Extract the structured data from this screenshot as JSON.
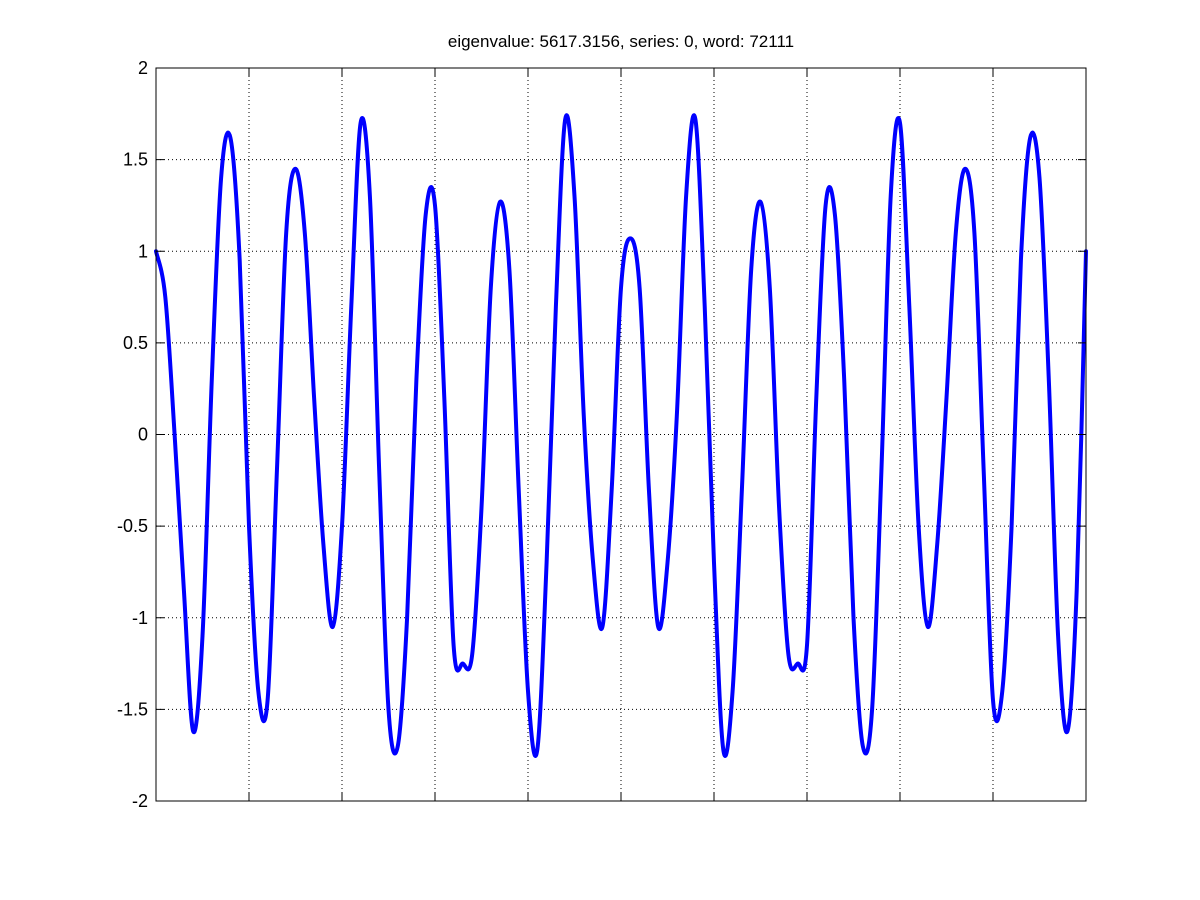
{
  "chart_data": {
    "type": "line",
    "title": "eigenvalue: 5617.3156, series: 0, word: 72111",
    "xlabel": "",
    "ylabel": "",
    "ylim": [
      -2,
      2
    ],
    "xlim": [
      0,
      1
    ],
    "y_ticks": [
      2,
      1.5,
      1,
      0.5,
      0,
      -0.5,
      -1,
      -1.5,
      -2
    ],
    "y_tick_labels": [
      "2",
      "1.5",
      "1",
      "0.5",
      "0",
      "-0.5",
      "-1",
      "-1.5",
      "-2"
    ],
    "x_ticks": [
      0,
      0.1,
      0.2,
      0.3,
      0.4,
      0.5,
      0.6,
      0.7,
      0.8,
      0.9,
      1
    ],
    "x_tick_labels_visible": false,
    "grid": true,
    "grid_style": "dotted",
    "line_color": "#0000ff",
    "series": [
      {
        "x": [
          0,
          0.01,
          0.02,
          0.03,
          0.04,
          0.05,
          0.06,
          0.07,
          0.08,
          0.09,
          0.1,
          0.11,
          0.12,
          0.13,
          0.14,
          0.15,
          0.16,
          0.17,
          0.18,
          0.19,
          0.2,
          0.21,
          0.22,
          0.23,
          0.24,
          0.25,
          0.26,
          0.27,
          0.28,
          0.29,
          0.3,
          0.31,
          0.32,
          0.33,
          0.34,
          0.35,
          0.36,
          0.37,
          0.38,
          0.39,
          0.4,
          0.41,
          0.42,
          0.43,
          0.44,
          0.45,
          0.46,
          0.47,
          0.48,
          0.49,
          0.5,
          0.51,
          0.52,
          0.53,
          0.54,
          0.55,
          0.56,
          0.57,
          0.58,
          0.59,
          0.6,
          0.61,
          0.62,
          0.63,
          0.64,
          0.65,
          0.66,
          0.67,
          0.68,
          0.69,
          0.7,
          0.71,
          0.72,
          0.73,
          0.74,
          0.75,
          0.76,
          0.77,
          0.78,
          0.79,
          0.8,
          0.81,
          0.82,
          0.83,
          0.84,
          0.85,
          0.86,
          0.87,
          0.88,
          0.89,
          0.9,
          0.91,
          0.92,
          0.93,
          0.94,
          0.95,
          0.96,
          0.97,
          0.98,
          0.99,
          1
        ],
        "y": [
          1.0,
          0.75,
          0.0,
          -0.85,
          -1.62,
          -1.1,
          0.3,
          1.4,
          1.62,
          0.95,
          -0.5,
          -1.4,
          -1.45,
          -0.2,
          1.1,
          1.45,
          1.1,
          0.2,
          -0.6,
          -1.05,
          -0.5,
          0.7,
          1.7,
          1.3,
          -0.2,
          -1.5,
          -1.7,
          -1.0,
          0.3,
          1.2,
          1.25,
          0.2,
          -1.15,
          -1.25,
          -1.2,
          -0.4,
          0.8,
          1.27,
          0.9,
          -0.3,
          -1.4,
          -1.72,
          -0.7,
          0.7,
          1.72,
          1.3,
          0.1,
          -0.7,
          -1.05,
          -0.3,
          0.8,
          1.07,
          0.8,
          -0.3,
          -1.05,
          -0.7,
          0.1,
          1.3,
          1.72,
          0.7,
          -0.7,
          -1.72,
          -1.4,
          -0.3,
          0.9,
          1.27,
          0.8,
          -0.4,
          -1.2,
          -1.25,
          -1.15,
          0.2,
          1.25,
          1.2,
          0.3,
          -1.0,
          -1.7,
          -1.5,
          -0.2,
          1.3,
          1.7,
          0.7,
          -0.5,
          -1.05,
          -0.6,
          0.2,
          1.1,
          1.45,
          1.1,
          -0.2,
          -1.45,
          -1.4,
          -0.5,
          0.95,
          1.62,
          1.4,
          0.3,
          -1.1,
          -1.62,
          -0.85,
          1.0
        ]
      }
    ]
  }
}
